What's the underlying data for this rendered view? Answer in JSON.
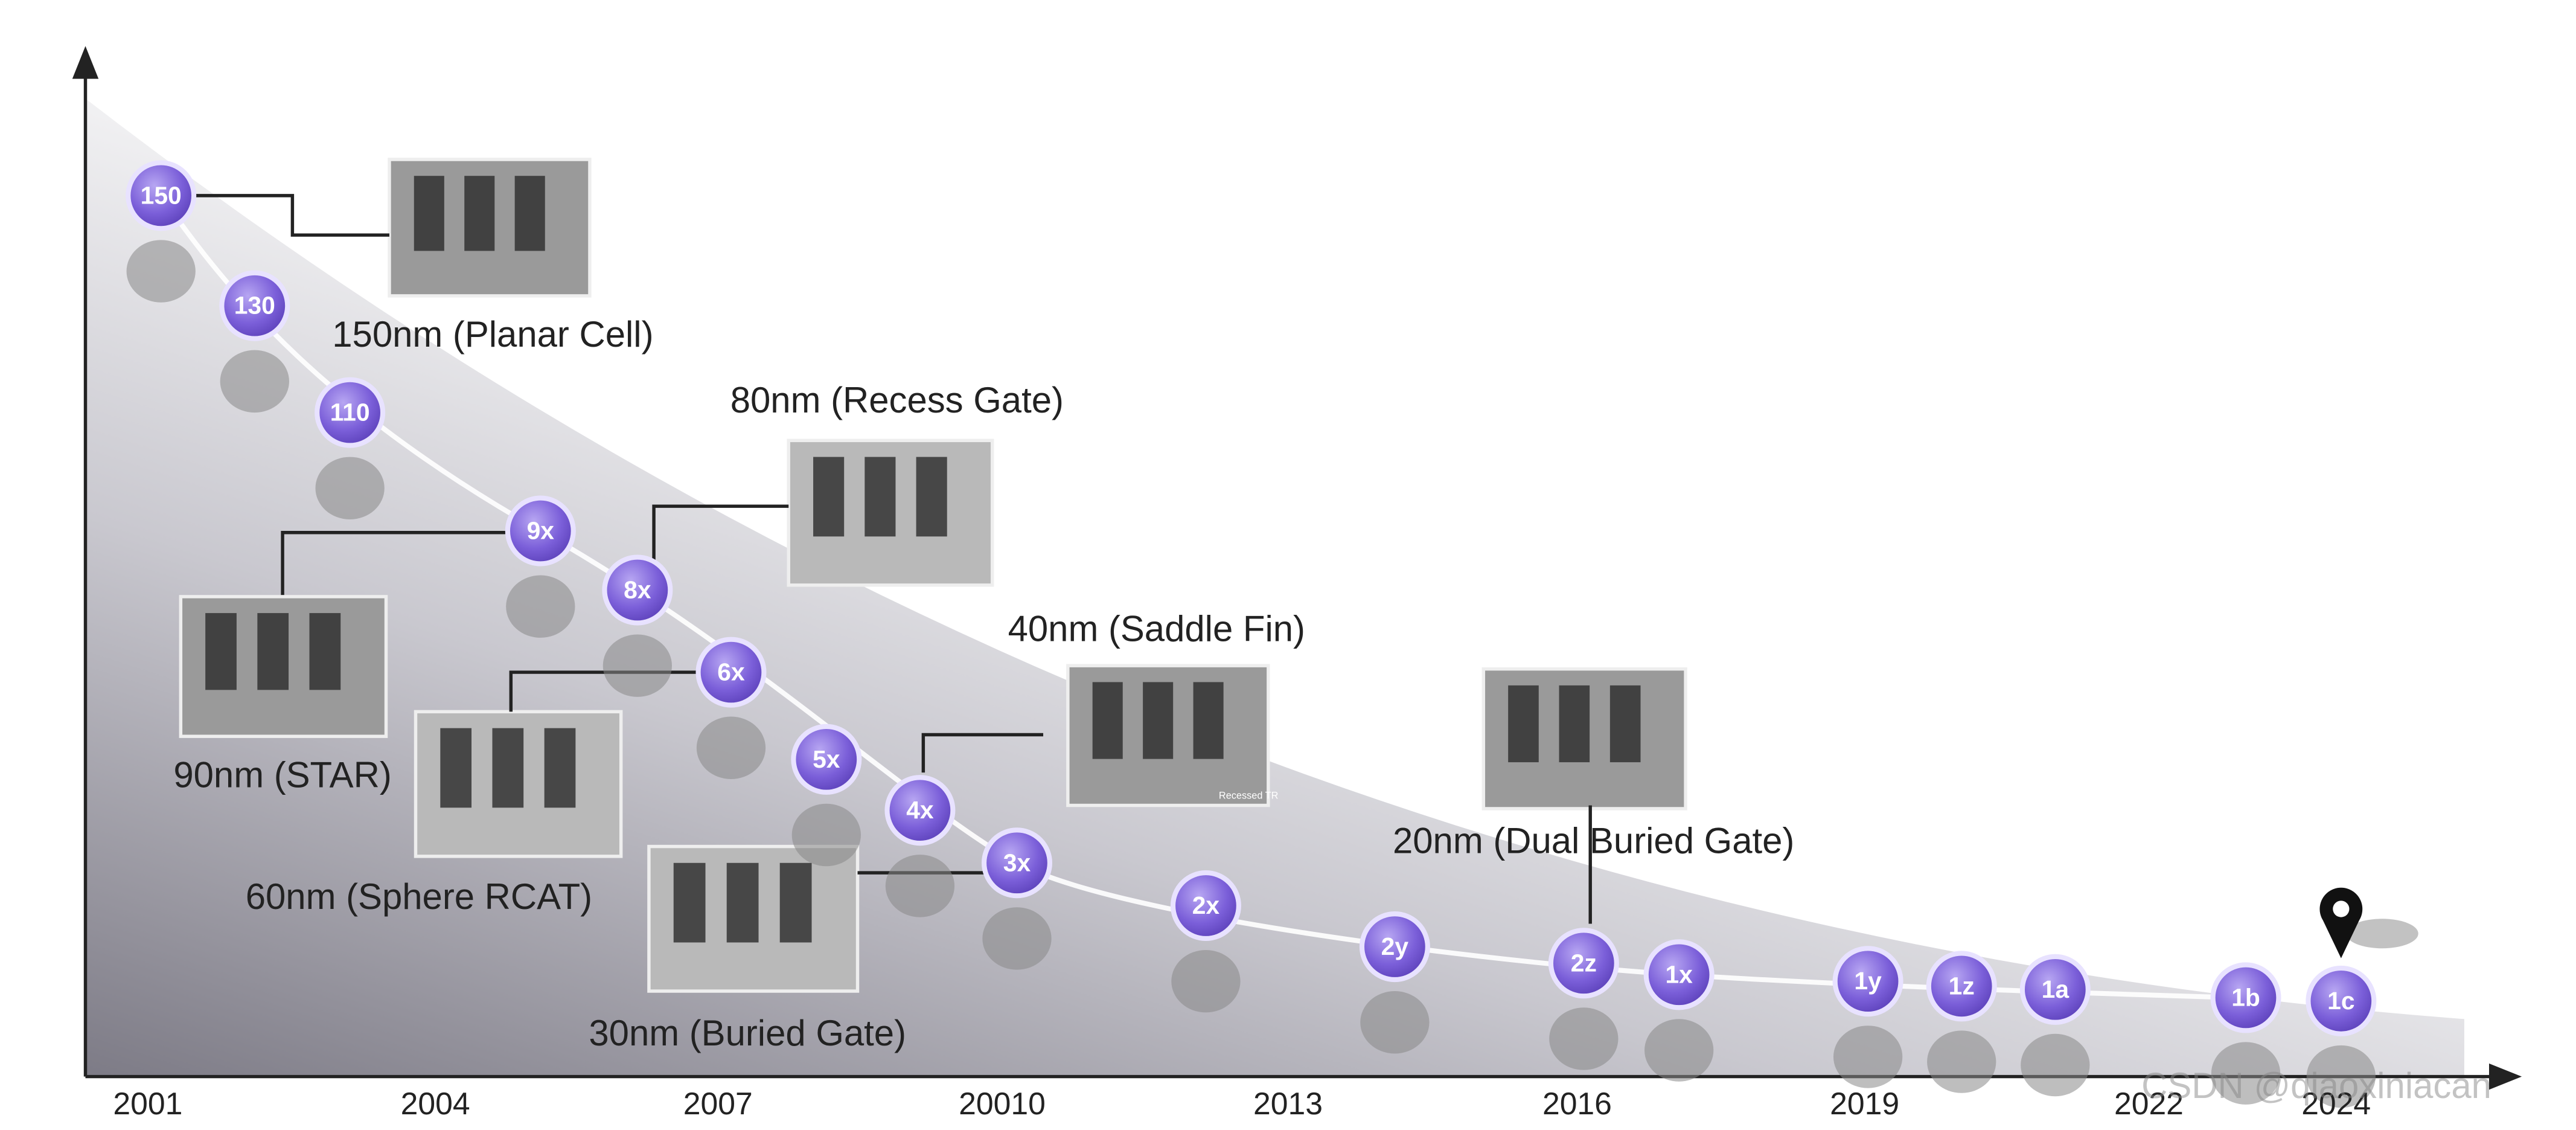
{
  "nodes": [
    "150",
    "130",
    "110",
    "9x",
    "8x",
    "6x",
    "5x",
    "4x",
    "3x",
    "2x",
    "2y",
    "2z",
    "1x",
    "1y",
    "1z",
    "1a",
    "1b",
    "1c"
  ],
  "years": [
    "2001",
    "2004",
    "2007",
    "20010",
    "2013",
    "2016",
    "2019",
    "2022",
    "2024"
  ],
  "annotations": {
    "planar": "150nm (Planar Cell)",
    "recess": "80nm (Recess Gate)",
    "star": "90nm (STAR)",
    "sphere": "60nm (Sphere RCAT)",
    "saddle": "40nm (Saddle Fin)",
    "buried": "30nm (Buried Gate)",
    "dual": "20nm (Dual Buried Gate)"
  },
  "image_text": "Recessed TR",
  "watermark": "CSDN @qiaoxiniacan"
}
